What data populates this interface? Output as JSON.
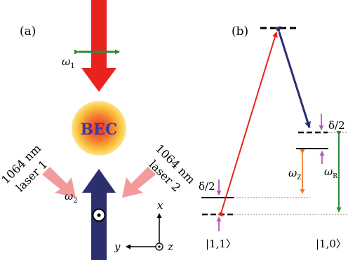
{
  "panel_a": {
    "label": "(a)",
    "omega1": "ω",
    "omega1_sub": "1",
    "omega2": "ω",
    "omega2_sub": "2",
    "bec": "BEC",
    "laser1": [
      "1064 nm",
      "laser 1"
    ],
    "laser2": [
      "1064 nm",
      "laser 2"
    ],
    "axes": {
      "x": "x",
      "y": "y",
      "z": "z"
    }
  },
  "panel_b": {
    "label": "(b)",
    "delta_top": "δ/2",
    "delta_bottom": "δ/2",
    "omega_z": "ω",
    "omega_z_sub": "Z",
    "omega_r": "ω",
    "omega_r_sub": "R",
    "state_left": "|1,1〉",
    "state_right": "|1,0〉"
  },
  "colors": {
    "red_beam": "#e8231e",
    "navy": "#2b2f6e",
    "green": "#2e8b3a",
    "pink": "#f29a9c",
    "purple": "#b35ab8",
    "orange": "#f07c2a",
    "bec_text": "#3a3d9e"
  }
}
